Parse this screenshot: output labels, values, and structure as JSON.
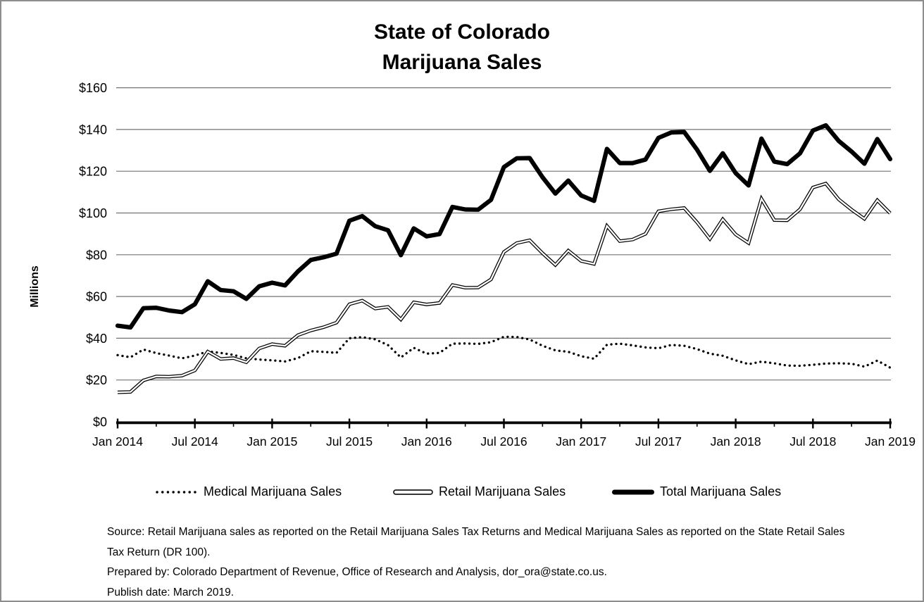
{
  "title": {
    "line1": "State of Colorado",
    "line2": "Marijuana Sales"
  },
  "y_axis": {
    "label": "Millions",
    "tick_labels": [
      "$0",
      "$20",
      "$40",
      "$60",
      "$80",
      "$100",
      "$120",
      "$140",
      "$160"
    ]
  },
  "x_axis": {
    "tick_labels": [
      "Jan 2014",
      "Jul 2014",
      "Jan 2015",
      "Jul 2015",
      "Jan 2016",
      "Jul 2016",
      "Jan 2017",
      "Jul 2017",
      "Jan 2018",
      "Jul 2018",
      "Jan 2019"
    ]
  },
  "legend": [
    {
      "label": "Medical Marijuana Sales",
      "style": "dotted"
    },
    {
      "label": "Retail Marijuana Sales",
      "style": "double-outline"
    },
    {
      "label": "Total Marijuana Sales",
      "style": "thick-solid"
    }
  ],
  "source": {
    "lines": [
      "Source: Retail Marijuana sales as reported on the Retail Marijuana Sales Tax Returns and Medical Marijuana Sales as reported on the State Retail Sales",
      "Tax Return (DR 100).",
      "Prepared by: Colorado Department of Revenue, Office of Research and Analysis, dor_ora@state.co.us.",
      "Publish date: March 2019."
    ]
  },
  "colors": {
    "line": "#000000",
    "gridline": "#737373",
    "border": "#8d8d8d",
    "background": "#ffffff"
  },
  "chart_data": {
    "type": "line",
    "title": "State of Colorado Marijuana Sales",
    "xlabel": "",
    "ylabel": "Millions",
    "ylim": [
      0,
      160
    ],
    "ytick_step": 20,
    "grid": true,
    "legend_position": "bottom",
    "x": [
      "Jan 2014",
      "Feb 2014",
      "Mar 2014",
      "Apr 2014",
      "May 2014",
      "Jun 2014",
      "Jul 2014",
      "Aug 2014",
      "Sep 2014",
      "Oct 2014",
      "Nov 2014",
      "Dec 2014",
      "Jan 2015",
      "Feb 2015",
      "Mar 2015",
      "Apr 2015",
      "May 2015",
      "Jun 2015",
      "Jul 2015",
      "Aug 2015",
      "Sep 2015",
      "Oct 2015",
      "Nov 2015",
      "Dec 2015",
      "Jan 2016",
      "Feb 2016",
      "Mar 2016",
      "Apr 2016",
      "May 2016",
      "Jun 2016",
      "Jul 2016",
      "Aug 2016",
      "Sep 2016",
      "Oct 2016",
      "Nov 2016",
      "Dec 2016",
      "Jan 2017",
      "Feb 2017",
      "Mar 2017",
      "Apr 2017",
      "May 2017",
      "Jun 2017",
      "Jul 2017",
      "Aug 2017",
      "Sep 2017",
      "Oct 2017",
      "Nov 2017",
      "Dec 2017",
      "Jan 2018",
      "Feb 2018",
      "Mar 2018",
      "Apr 2018",
      "May 2018",
      "Jun 2018",
      "Jul 2018",
      "Aug 2018",
      "Sep 2018",
      "Oct 2018",
      "Nov 2018",
      "Dec 2018",
      "Jan 2019"
    ],
    "series": [
      {
        "name": "Medical Marijuana Sales",
        "style": "dotted",
        "values": [
          31.9,
          30.9,
          34.6,
          32.9,
          31.7,
          30.4,
          31.7,
          33.7,
          33.0,
          32.0,
          30.4,
          29.8,
          29.4,
          28.9,
          30.5,
          33.8,
          33.5,
          33.0,
          40.0,
          40.5,
          39.5,
          36.7,
          30.8,
          35.4,
          32.6,
          33.0,
          37.4,
          37.5,
          37.3,
          38.1,
          40.7,
          40.6,
          39.4,
          36.4,
          34.2,
          33.5,
          31.4,
          30.2,
          36.9,
          37.4,
          36.6,
          35.6,
          35.2,
          36.8,
          36.4,
          34.8,
          32.6,
          31.6,
          29.4,
          27.6,
          28.8,
          28.0,
          26.9,
          26.8,
          27.3,
          27.9,
          28.0,
          27.8,
          26.4,
          29.3,
          25.9
        ]
      },
      {
        "name": "Retail Marijuana Sales",
        "style": "double-outline",
        "values": [
          14.1,
          14.3,
          19.8,
          21.7,
          21.6,
          22.1,
          24.6,
          33.6,
          30.1,
          30.5,
          28.5,
          35.1,
          37.2,
          36.4,
          41.5,
          43.7,
          45.3,
          47.5,
          56.3,
          58.0,
          54.2,
          55.0,
          49.0,
          57.2,
          56.2,
          56.9,
          65.5,
          64.2,
          64.3,
          68.2,
          81.3,
          85.6,
          86.9,
          80.7,
          75.1,
          82.0,
          77.0,
          75.6,
          93.8,
          86.5,
          87.3,
          90.0,
          100.8,
          101.8,
          102.4,
          95.5,
          87.6,
          97.0,
          89.7,
          85.6,
          106.8,
          96.6,
          96.5,
          101.8,
          112.2,
          114.1,
          106.5,
          101.6,
          97.2,
          106.1,
          99.9
        ]
      },
      {
        "name": "Total Marijuana Sales",
        "style": "thick-solid",
        "values": [
          46.0,
          45.2,
          54.4,
          54.6,
          53.3,
          52.5,
          56.3,
          67.3,
          63.1,
          62.5,
          58.9,
          64.9,
          66.6,
          65.3,
          72.0,
          77.5,
          78.8,
          80.5,
          96.3,
          98.5,
          93.7,
          91.7,
          79.8,
          92.6,
          88.8,
          89.9,
          102.9,
          101.7,
          101.6,
          106.3,
          122.0,
          126.2,
          126.3,
          117.1,
          109.3,
          115.5,
          108.4,
          105.8,
          130.7,
          123.9,
          123.9,
          125.6,
          136.0,
          138.6,
          138.8,
          130.3,
          120.2,
          128.6,
          119.1,
          113.2,
          135.6,
          124.6,
          123.4,
          128.6,
          139.5,
          142.0,
          134.5,
          129.4,
          123.6,
          135.4,
          125.8
        ]
      }
    ]
  }
}
